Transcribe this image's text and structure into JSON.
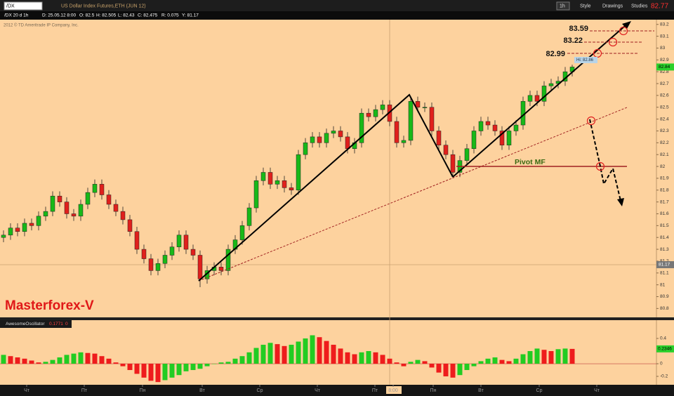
{
  "toolbar": {
    "symbol": "/DX",
    "description": "US Dollar Index Futures,ETH (JUN 12)",
    "interval": "1h",
    "buttons": [
      "Style",
      "Drawings",
      "Studies"
    ],
    "last_price": "82.77"
  },
  "info_bar": [
    "/DX 20 d 1h",
    "D: 25.05.12 8:00",
    "O: 82.5",
    "H: 82.505",
    "L: 82.43",
    "C: 82.475",
    "R: 0.075",
    "Y: 81.17"
  ],
  "chart_data": [
    {
      "type": "candlestick",
      "copyright": "2012 © TD Ameritrade IP Company, Inc.",
      "watermark": "Masterforex-V",
      "annotations": {
        "levels": [
          "83.59",
          "83.22",
          "82.99"
        ],
        "pivot": "Pivot MF",
        "high": "Hi: 82.86"
      },
      "open": [
        81.4,
        81.42,
        81.48,
        81.45,
        81.52,
        81.5,
        81.58,
        81.62,
        81.75,
        81.7,
        81.6,
        81.58,
        81.68,
        81.78,
        81.85,
        81.76,
        81.68,
        81.62,
        81.55,
        81.45,
        81.3,
        81.22,
        81.12,
        81.18,
        81.25,
        81.32,
        81.42,
        81.3,
        81.25,
        81.05,
        81.12,
        81.15,
        81.12,
        81.3,
        81.38,
        81.5,
        81.65,
        81.88,
        81.95,
        81.85,
        81.88,
        81.82,
        81.8,
        82.1,
        82.2,
        82.25,
        82.2,
        82.28,
        82.3,
        82.25,
        82.15,
        82.2,
        82.45,
        82.42,
        82.48,
        82.52,
        82.38,
        82.2,
        82.22,
        82.55,
        82.5,
        82.5,
        82.3,
        82.18,
        82.1,
        81.95,
        82.05,
        82.15,
        82.3,
        82.38,
        82.35,
        82.3,
        82.18,
        82.3,
        82.35,
        82.55,
        82.6,
        82.55,
        82.68,
        82.7,
        82.72,
        82.8
      ],
      "high": [
        81.46,
        81.52,
        81.52,
        81.56,
        81.56,
        81.62,
        81.66,
        81.79,
        81.79,
        81.74,
        81.64,
        81.72,
        81.82,
        81.89,
        81.89,
        81.8,
        81.72,
        81.66,
        81.59,
        81.49,
        81.34,
        81.26,
        81.22,
        81.29,
        81.36,
        81.46,
        81.46,
        81.34,
        81.29,
        81.16,
        81.19,
        81.19,
        81.34,
        81.42,
        81.54,
        81.69,
        81.92,
        81.99,
        81.99,
        81.92,
        81.92,
        81.86,
        82.14,
        82.24,
        82.29,
        82.29,
        82.32,
        82.34,
        82.34,
        82.29,
        82.24,
        82.49,
        82.49,
        82.52,
        82.56,
        82.56,
        82.42,
        82.26,
        82.59,
        82.59,
        82.54,
        82.54,
        82.34,
        82.22,
        82.14,
        82.09,
        82.19,
        82.34,
        82.42,
        82.42,
        82.39,
        82.34,
        82.34,
        82.39,
        82.59,
        82.64,
        82.64,
        82.72,
        82.74,
        82.76,
        82.84,
        82.86
      ],
      "low": [
        81.36,
        81.38,
        81.41,
        81.41,
        81.46,
        81.46,
        81.54,
        81.58,
        81.66,
        81.56,
        81.54,
        81.54,
        81.64,
        81.74,
        81.72,
        81.64,
        81.58,
        81.51,
        81.41,
        81.26,
        81.18,
        81.08,
        81.08,
        81.14,
        81.21,
        81.28,
        81.26,
        81.21,
        80.98,
        81.01,
        81.08,
        81.08,
        81.08,
        81.26,
        81.34,
        81.46,
        81.61,
        81.84,
        81.81,
        81.81,
        81.78,
        81.76,
        81.76,
        82.06,
        82.16,
        82.16,
        82.16,
        82.24,
        82.21,
        82.11,
        82.11,
        82.16,
        82.38,
        82.38,
        82.44,
        82.34,
        82.16,
        82.16,
        82.18,
        82.46,
        82.46,
        82.26,
        82.14,
        82.06,
        81.91,
        81.91,
        82.01,
        82.11,
        82.26,
        82.31,
        82.26,
        82.14,
        82.14,
        82.26,
        82.31,
        82.51,
        82.51,
        82.51,
        82.64,
        82.66,
        82.68,
        82.76
      ],
      "close": [
        81.42,
        81.48,
        81.45,
        81.52,
        81.5,
        81.58,
        81.62,
        81.75,
        81.7,
        81.6,
        81.58,
        81.68,
        81.78,
        81.85,
        81.76,
        81.68,
        81.62,
        81.55,
        81.45,
        81.3,
        81.22,
        81.12,
        81.18,
        81.25,
        81.32,
        81.42,
        81.3,
        81.25,
        81.05,
        81.12,
        81.15,
        81.12,
        81.3,
        81.38,
        81.5,
        81.65,
        81.88,
        81.95,
        81.85,
        81.88,
        81.82,
        81.8,
        82.1,
        82.2,
        82.25,
        82.2,
        82.28,
        82.3,
        82.25,
        82.15,
        82.2,
        82.45,
        82.42,
        82.48,
        82.52,
        82.38,
        82.2,
        82.22,
        82.55,
        82.5,
        82.5,
        82.3,
        82.18,
        82.1,
        81.95,
        82.05,
        82.15,
        82.3,
        82.38,
        82.35,
        82.3,
        82.18,
        82.3,
        82.35,
        82.55,
        82.6,
        82.55,
        82.68,
        82.7,
        82.72,
        82.8,
        82.84
      ],
      "up_color": "#18b818",
      "down_color": "#e0201c",
      "crosshair_value": 81.17,
      "xlim": [
        -0.5,
        93
      ],
      "xticks": [
        {
          "value": 3.3,
          "label": "Чт"
        },
        {
          "value": 11.5,
          "label": "Пт"
        },
        {
          "value": 19.8,
          "label": "Пн"
        },
        {
          "value": 28.3,
          "label": "Вт"
        },
        {
          "value": 36.5,
          "label": "Ср"
        },
        {
          "value": 44.7,
          "label": "Чт"
        },
        {
          "value": 52.9,
          "label": "Пт"
        },
        {
          "value": 55.5,
          "label": "8:00"
        },
        {
          "value": 61.2,
          "label": "Пн"
        },
        {
          "value": 68,
          "label": "Вт"
        },
        {
          "value": 76.3,
          "label": "Ср"
        },
        {
          "value": 84.5,
          "label": "Чт"
        }
      ],
      "ylim": [
        80.725,
        83.24
      ],
      "yticks": [
        80.8,
        80.9,
        81,
        81.1,
        81.2,
        81.3,
        81.4,
        81.5,
        81.6,
        81.7,
        81.8,
        81.9,
        82,
        82.1,
        82.2,
        82.3,
        82.4,
        82.5,
        82.6,
        82.7,
        82.8,
        82.9,
        83,
        83.1,
        83.2
      ]
    },
    {
      "type": "histogram",
      "title": "AwesomeOscillator",
      "header_values": [
        "0.1771",
        "0"
      ],
      "values": [
        0.14,
        0.12,
        0.1,
        0.08,
        0.05,
        0.02,
        0.03,
        0.06,
        0.1,
        0.14,
        0.16,
        0.18,
        0.17,
        0.16,
        0.12,
        0.08,
        0.02,
        -0.04,
        -0.1,
        -0.16,
        -0.22,
        -0.27,
        -0.29,
        -0.26,
        -0.22,
        -0.18,
        -0.12,
        -0.1,
        -0.08,
        -0.04,
        0.0,
        0.02,
        0.03,
        0.08,
        0.12,
        0.18,
        0.25,
        0.3,
        0.33,
        0.31,
        0.28,
        0.3,
        0.35,
        0.4,
        0.45,
        0.42,
        0.36,
        0.3,
        0.24,
        0.18,
        0.15,
        0.18,
        0.2,
        0.18,
        0.14,
        0.08,
        0.02,
        -0.04,
        0.03,
        0.06,
        0.04,
        -0.06,
        -0.14,
        -0.2,
        -0.22,
        -0.18,
        -0.1,
        -0.04,
        0.04,
        0.08,
        0.1,
        0.06,
        0.04,
        0.08,
        0.15,
        0.2,
        0.24,
        0.22,
        0.2,
        0.23,
        0.24,
        0.2346
      ],
      "up_color": "#22cc22",
      "down_color": "#ee1c1c",
      "ylim": [
        -0.333,
        0.689
      ],
      "yticks": [
        -0.2,
        0,
        0.4
      ]
    }
  ]
}
